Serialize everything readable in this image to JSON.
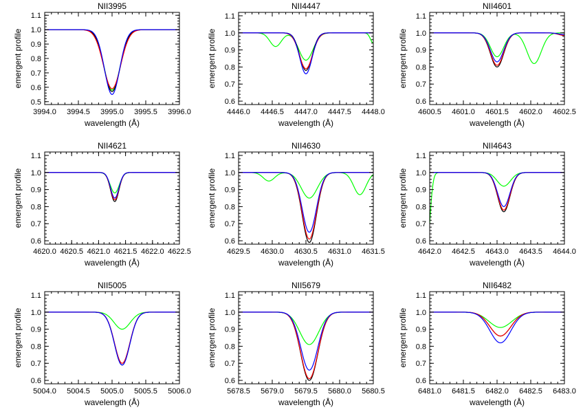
{
  "chart_data": [
    {
      "type": "line",
      "title": "NII3995",
      "xlabel": "wavelength (Å)",
      "ylabel": "emergent profile",
      "xlim": [
        3994.0,
        3996.0
      ],
      "ylim": [
        0.48,
        1.12
      ],
      "xticks": [
        3994.0,
        3994.5,
        3995.0,
        3995.5,
        3996.0
      ],
      "xtick_labels": [
        "3994.0",
        "3994.5",
        "3995.0",
        "3995.5",
        "3996.0"
      ],
      "yticks": [
        0.5,
        0.6,
        0.7,
        0.8,
        0.9,
        1.0,
        1.1
      ],
      "ytick_labels": [
        "0.5",
        "0.6",
        "0.7",
        "0.8",
        "0.9",
        "1.0",
        "1.1"
      ],
      "series": [
        {
          "color": "#000000",
          "lines": [
            {
              "center": 3995.0,
              "depth": 0.43,
              "width": 0.17
            }
          ]
        },
        {
          "color": "#ff0000",
          "lines": [
            {
              "center": 3995.0,
              "depth": 0.41,
              "width": 0.18
            }
          ]
        },
        {
          "color": "#0000ff",
          "lines": [
            {
              "center": 3995.0,
              "depth": 0.45,
              "width": 0.16
            }
          ]
        },
        {
          "color": "#00ff00",
          "lines": [
            {
              "center": 3995.0,
              "depth": 0.42,
              "width": 0.17
            }
          ]
        }
      ]
    },
    {
      "type": "line",
      "title": "NII4447",
      "xlabel": "wavelength (Å)",
      "ylabel": "emergent profile",
      "xlim": [
        4446.0,
        4448.0
      ],
      "ylim": [
        0.58,
        1.12
      ],
      "xticks": [
        4446.0,
        4446.5,
        4447.0,
        4447.5,
        4448.0
      ],
      "xtick_labels": [
        "4446.0",
        "4446.5",
        "4447.0",
        "4447.5",
        "4448.0"
      ],
      "yticks": [
        0.6,
        0.7,
        0.8,
        0.9,
        1.0,
        1.1
      ],
      "ytick_labels": [
        "0.6",
        "0.7",
        "0.8",
        "0.9",
        "1.0",
        "1.1"
      ],
      "series": [
        {
          "color": "#000000",
          "lines": [
            {
              "center": 4447.0,
              "depth": 0.22,
              "width": 0.13
            }
          ]
        },
        {
          "color": "#ff0000",
          "lines": [
            {
              "center": 4447.0,
              "depth": 0.21,
              "width": 0.14
            }
          ]
        },
        {
          "color": "#0000ff",
          "lines": [
            {
              "center": 4447.0,
              "depth": 0.24,
              "width": 0.13
            }
          ]
        },
        {
          "color": "#00ff00",
          "lines": [
            {
              "center": 4447.0,
              "depth": 0.16,
              "width": 0.15
            },
            {
              "center": 4446.55,
              "depth": 0.08,
              "width": 0.12
            },
            {
              "center": 4448.0,
              "depth": 0.06,
              "width": 0.06
            }
          ]
        }
      ]
    },
    {
      "type": "line",
      "title": "NII4601",
      "xlabel": "wavelength (Å)",
      "ylabel": "emergent profile",
      "xlim": [
        4600.5,
        4602.5
      ],
      "ylim": [
        0.58,
        1.12
      ],
      "xticks": [
        4600.5,
        4601.0,
        4601.5,
        4602.0,
        4602.5
      ],
      "xtick_labels": [
        "4600.5",
        "4601.0",
        "4601.5",
        "4602.0",
        "4602.5"
      ],
      "yticks": [
        0.6,
        0.7,
        0.8,
        0.9,
        1.0,
        1.1
      ],
      "ytick_labels": [
        "0.6",
        "0.7",
        "0.8",
        "0.9",
        "1.0",
        "1.1"
      ],
      "series": [
        {
          "color": "#000000",
          "lines": [
            {
              "center": 4601.5,
              "depth": 0.2,
              "width": 0.14
            },
            {
              "center": 4602.5,
              "depth": 0.015,
              "width": 0.12
            }
          ]
        },
        {
          "color": "#ff0000",
          "lines": [
            {
              "center": 4601.5,
              "depth": 0.19,
              "width": 0.14
            },
            {
              "center": 4602.5,
              "depth": 0.015,
              "width": 0.12
            }
          ]
        },
        {
          "color": "#0000ff",
          "lines": [
            {
              "center": 4601.5,
              "depth": 0.17,
              "width": 0.14
            },
            {
              "center": 4602.5,
              "depth": 0.01,
              "width": 0.12
            }
          ]
        },
        {
          "color": "#00ff00",
          "lines": [
            {
              "center": 4601.5,
              "depth": 0.14,
              "width": 0.14
            },
            {
              "center": 4602.05,
              "depth": 0.18,
              "width": 0.15
            }
          ]
        }
      ]
    },
    {
      "type": "line",
      "title": "NII4621",
      "xlabel": "wavelength (Å)",
      "ylabel": "emergent profile",
      "xlim": [
        4620.0,
        4622.5
      ],
      "ylim": [
        0.58,
        1.12
      ],
      "xticks": [
        4620.0,
        4620.5,
        4621.0,
        4621.5,
        4622.0,
        4622.5
      ],
      "xtick_labels": [
        "4620.0",
        "4620.5",
        "4621.0",
        "4621.5",
        "4622.0",
        "4622.5"
      ],
      "yticks": [
        0.6,
        0.7,
        0.8,
        0.9,
        1.0,
        1.1
      ],
      "ytick_labels": [
        "0.6",
        "0.7",
        "0.8",
        "0.9",
        "1.0",
        "1.1"
      ],
      "series": [
        {
          "color": "#000000",
          "lines": [
            {
              "center": 4621.3,
              "depth": 0.17,
              "width": 0.11
            }
          ]
        },
        {
          "color": "#ff0000",
          "lines": [
            {
              "center": 4621.3,
              "depth": 0.16,
              "width": 0.11
            }
          ]
        },
        {
          "color": "#0000ff",
          "lines": [
            {
              "center": 4621.3,
              "depth": 0.15,
              "width": 0.11
            }
          ]
        },
        {
          "color": "#00ff00",
          "lines": [
            {
              "center": 4621.3,
              "depth": 0.12,
              "width": 0.12
            }
          ]
        }
      ]
    },
    {
      "type": "line",
      "title": "NII4630",
      "xlabel": "wavelength (Å)",
      "ylabel": "emergent profile",
      "xlim": [
        4629.5,
        4631.5
      ],
      "ylim": [
        0.58,
        1.12
      ],
      "xticks": [
        4629.5,
        4630.0,
        4630.5,
        4631.0,
        4631.5
      ],
      "xtick_labels": [
        "4629.5",
        "4630.0",
        "4630.5",
        "4631.0",
        "4631.5"
      ],
      "yticks": [
        0.6,
        0.7,
        0.8,
        0.9,
        1.0,
        1.1
      ],
      "ytick_labels": [
        "0.6",
        "0.7",
        "0.8",
        "0.9",
        "1.0",
        "1.1"
      ],
      "series": [
        {
          "color": "#000000",
          "lines": [
            {
              "center": 4630.55,
              "depth": 0.41,
              "width": 0.15
            }
          ]
        },
        {
          "color": "#ff0000",
          "lines": [
            {
              "center": 4630.55,
              "depth": 0.39,
              "width": 0.15
            }
          ]
        },
        {
          "color": "#0000ff",
          "lines": [
            {
              "center": 4630.55,
              "depth": 0.35,
              "width": 0.15
            }
          ]
        },
        {
          "color": "#00ff00",
          "lines": [
            {
              "center": 4630.55,
              "depth": 0.15,
              "width": 0.17
            },
            {
              "center": 4629.95,
              "depth": 0.05,
              "width": 0.12
            },
            {
              "center": 4631.3,
              "depth": 0.13,
              "width": 0.13
            }
          ]
        }
      ]
    },
    {
      "type": "line",
      "title": "NII4643",
      "xlabel": "wavelength (Å)",
      "ylabel": "emergent profile",
      "xlim": [
        4642.0,
        4644.0
      ],
      "ylim": [
        0.58,
        1.12
      ],
      "xticks": [
        4642.0,
        4642.5,
        4643.0,
        4643.5,
        4644.0
      ],
      "xtick_labels": [
        "4642.0",
        "4642.5",
        "4643.0",
        "4643.5",
        "4644.0"
      ],
      "yticks": [
        0.6,
        0.7,
        0.8,
        0.9,
        1.0,
        1.1
      ],
      "ytick_labels": [
        "0.6",
        "0.7",
        "0.8",
        "0.9",
        "1.0",
        "1.1"
      ],
      "series": [
        {
          "color": "#000000",
          "lines": [
            {
              "center": 4643.1,
              "depth": 0.23,
              "width": 0.13
            },
            {
              "center": 4641.85,
              "depth": 0.02,
              "width": 0.08
            }
          ]
        },
        {
          "color": "#ff0000",
          "lines": [
            {
              "center": 4643.1,
              "depth": 0.22,
              "width": 0.13
            },
            {
              "center": 4641.85,
              "depth": 0.015,
              "width": 0.08
            }
          ]
        },
        {
          "color": "#0000ff",
          "lines": [
            {
              "center": 4643.1,
              "depth": 0.2,
              "width": 0.13
            },
            {
              "center": 4641.85,
              "depth": 0.03,
              "width": 0.08
            }
          ]
        },
        {
          "color": "#00ff00",
          "lines": [
            {
              "center": 4643.1,
              "depth": 0.08,
              "width": 0.14
            },
            {
              "center": 4641.95,
              "depth": 0.5,
              "width": 0.07
            }
          ]
        }
      ]
    },
    {
      "type": "line",
      "title": "NII5005",
      "xlabel": "wavelength (Å)",
      "ylabel": "emergent profile",
      "xlim": [
        5004.0,
        5006.0
      ],
      "ylim": [
        0.58,
        1.12
      ],
      "xticks": [
        5004.0,
        5004.5,
        5005.0,
        5005.5,
        5006.0
      ],
      "xtick_labels": [
        "5004.0",
        "5004.5",
        "5005.0",
        "5005.5",
        "5006.0"
      ],
      "yticks": [
        0.6,
        0.7,
        0.8,
        0.9,
        1.0,
        1.1
      ],
      "ytick_labels": [
        "0.6",
        "0.7",
        "0.8",
        "0.9",
        "1.0",
        "1.1"
      ],
      "series": [
        {
          "color": "#000000",
          "lines": [
            {
              "center": 5005.15,
              "depth": 0.31,
              "width": 0.16
            }
          ]
        },
        {
          "color": "#ff0000",
          "lines": [
            {
              "center": 5005.15,
              "depth": 0.3,
              "width": 0.16
            }
          ]
        },
        {
          "color": "#0000ff",
          "lines": [
            {
              "center": 5005.15,
              "depth": 0.31,
              "width": 0.16
            }
          ]
        },
        {
          "color": "#00ff00",
          "lines": [
            {
              "center": 5005.15,
              "depth": 0.1,
              "width": 0.17
            }
          ]
        }
      ]
    },
    {
      "type": "line",
      "title": "NII5679",
      "xlabel": "wavelength (Å)",
      "ylabel": "emergent profile",
      "xlim": [
        5678.5,
        5680.5
      ],
      "ylim": [
        0.58,
        1.12
      ],
      "xticks": [
        5678.5,
        5679.0,
        5679.5,
        5680.0,
        5680.5
      ],
      "xtick_labels": [
        "5678.5",
        "5679.0",
        "5679.5",
        "5680.0",
        "5680.5"
      ],
      "yticks": [
        0.6,
        0.7,
        0.8,
        0.9,
        1.0,
        1.1
      ],
      "ytick_labels": [
        "0.6",
        "0.7",
        "0.8",
        "0.9",
        "1.0",
        "1.1"
      ],
      "series": [
        {
          "color": "#000000",
          "lines": [
            {
              "center": 5679.55,
              "depth": 0.4,
              "width": 0.18
            }
          ]
        },
        {
          "color": "#ff0000",
          "lines": [
            {
              "center": 5679.55,
              "depth": 0.39,
              "width": 0.18
            }
          ]
        },
        {
          "color": "#0000ff",
          "lines": [
            {
              "center": 5679.55,
              "depth": 0.34,
              "width": 0.18
            }
          ]
        },
        {
          "color": "#00ff00",
          "lines": [
            {
              "center": 5679.55,
              "depth": 0.19,
              "width": 0.2
            }
          ]
        }
      ]
    },
    {
      "type": "line",
      "title": "NII6482",
      "xlabel": "wavelength (Å)",
      "ylabel": "emergent profile",
      "xlim": [
        6481.0,
        6483.0
      ],
      "ylim": [
        0.58,
        1.12
      ],
      "xticks": [
        6481.0,
        6481.5,
        6482.0,
        6482.5,
        6483.0
      ],
      "xtick_labels": [
        "6481.0",
        "6481.5",
        "6482.0",
        "6482.5",
        "6483.0"
      ],
      "yticks": [
        0.6,
        0.7,
        0.8,
        0.9,
        1.0,
        1.1
      ],
      "ytick_labels": [
        "0.6",
        "0.7",
        "0.8",
        "0.9",
        "1.0",
        "1.1"
      ],
      "series": [
        {
          "color": "#000000",
          "lines": [
            {
              "center": 6482.05,
              "depth": 0.14,
              "width": 0.22
            }
          ]
        },
        {
          "color": "#ff0000",
          "lines": [
            {
              "center": 6482.05,
              "depth": 0.14,
              "width": 0.22
            }
          ]
        },
        {
          "color": "#0000ff",
          "lines": [
            {
              "center": 6482.05,
              "depth": 0.18,
              "width": 0.22
            }
          ]
        },
        {
          "color": "#00ff00",
          "lines": [
            {
              "center": 6482.05,
              "depth": 0.09,
              "width": 0.24
            }
          ]
        }
      ]
    }
  ]
}
